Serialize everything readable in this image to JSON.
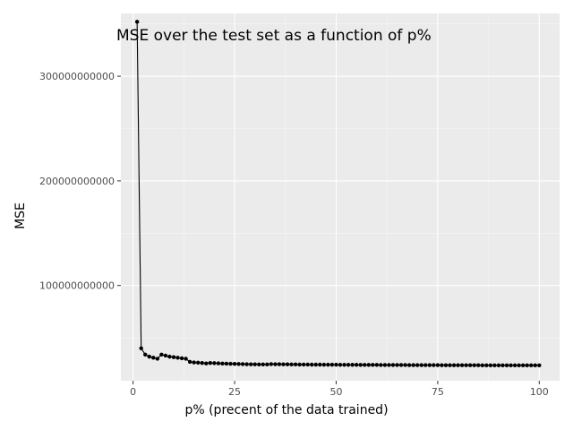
{
  "chart_data": {
    "type": "line",
    "title": "MSE over the test set as a function of p%",
    "xlabel": "p% (precent of the data trained)",
    "ylabel": "MSE",
    "xlim": [
      -3,
      105
    ],
    "ylim": [
      9000000000,
      360000000000
    ],
    "x_ticks": [
      0,
      25,
      50,
      75,
      100
    ],
    "x_tick_labels": [
      "0",
      "25",
      "50",
      "75",
      "100"
    ],
    "y_ticks": [
      100000000000,
      200000000000,
      300000000000
    ],
    "y_tick_labels": [
      "100000000000",
      "200000000000",
      "300000000000"
    ],
    "grid": true,
    "colors": {
      "panel": "#ebebeb",
      "grid_major": "#ffffff",
      "grid_minor": "#f5f5f5",
      "series": "#000000"
    },
    "series": [
      {
        "x": [
          1,
          2,
          3,
          4,
          5,
          6,
          7,
          8,
          9,
          10,
          11,
          12,
          13,
          14,
          15,
          16,
          17,
          18,
          19,
          20,
          21,
          22,
          23,
          24,
          25,
          26,
          27,
          28,
          29,
          30,
          31,
          32,
          33,
          34,
          35,
          36,
          37,
          38,
          39,
          40,
          41,
          42,
          43,
          44,
          45,
          46,
          47,
          48,
          49,
          50,
          51,
          52,
          53,
          54,
          55,
          56,
          57,
          58,
          59,
          60,
          61,
          62,
          63,
          64,
          65,
          66,
          67,
          68,
          69,
          70,
          71,
          72,
          73,
          74,
          75,
          76,
          77,
          78,
          79,
          80,
          81,
          82,
          83,
          84,
          85,
          86,
          87,
          88,
          89,
          90,
          91,
          92,
          93,
          94,
          95,
          96,
          97,
          98,
          99,
          100
        ],
        "values": [
          352000000000,
          40000000000,
          34000000000,
          32000000000,
          31000000000,
          30000000000,
          34000000000,
          33000000000,
          32000000000,
          31500000000,
          31000000000,
          30500000000,
          30000000000,
          27000000000,
          26500000000,
          26300000000,
          26000000000,
          25500000000,
          26000000000,
          25800000000,
          25600000000,
          25400000000,
          25300000000,
          25200000000,
          25100000000,
          25000000000,
          24900000000,
          24800000000,
          24700000000,
          24700000000,
          24600000000,
          24600000000,
          24600000000,
          24900000000,
          24800000000,
          24800000000,
          24700000000,
          24700000000,
          24600000000,
          24600000000,
          24500000000,
          24500000000,
          24500000000,
          24400000000,
          24400000000,
          24400000000,
          24300000000,
          24300000000,
          24300000000,
          24300000000,
          24200000000,
          24200000000,
          24200000000,
          24200000000,
          24200000000,
          24100000000,
          24100000000,
          24100000000,
          24100000000,
          24100000000,
          24000000000,
          24000000000,
          24000000000,
          24000000000,
          24000000000,
          24000000000,
          24000000000,
          23900000000,
          23900000000,
          23900000000,
          23900000000,
          23900000000,
          23900000000,
          23900000000,
          23900000000,
          23800000000,
          23800000000,
          23800000000,
          23800000000,
          23800000000,
          23800000000,
          23800000000,
          23800000000,
          23800000000,
          23800000000,
          23700000000,
          23700000000,
          23700000000,
          23700000000,
          23700000000,
          23700000000,
          23700000000,
          23700000000,
          23700000000,
          23700000000,
          23700000000,
          23700000000,
          23700000000,
          23700000000,
          23700000000
        ]
      }
    ]
  }
}
